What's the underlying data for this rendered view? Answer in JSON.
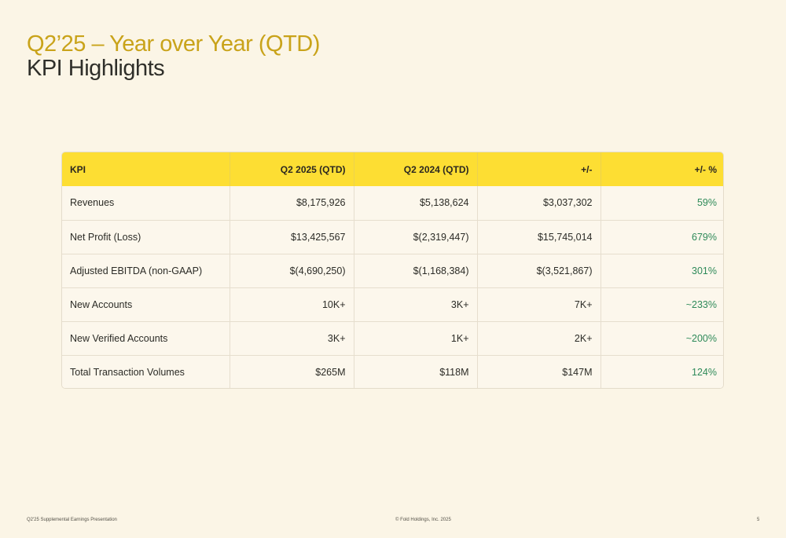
{
  "header": {
    "title": "Q2’25 – Year over Year (QTD)",
    "subtitle": "KPI Highlights"
  },
  "table": {
    "columns": [
      "KPI",
      "Q2 2025 (QTD)",
      "Q2 2024 (QTD)",
      "+/-",
      "+/- %"
    ],
    "rows": [
      [
        "Revenues",
        "$8,175,926",
        "$5,138,624",
        "$3,037,302",
        "59%"
      ],
      [
        "Net Profit (Loss)",
        "$13,425,567",
        "$(2,319,447)",
        "$15,745,014",
        "679%"
      ],
      [
        "Adjusted EBITDA (non-GAAP)",
        "$(4,690,250)",
        "$(1,168,384)",
        "$(3,521,867)",
        "301%"
      ],
      [
        "New Accounts",
        "10K+",
        "3K+",
        "7K+",
        "~233%"
      ],
      [
        "New Verified Accounts",
        "3K+",
        "1K+",
        "2K+",
        "~200%"
      ],
      [
        "Total Transaction Volumes",
        "$265M",
        "$118M",
        "$147M",
        "124%"
      ]
    ]
  },
  "footer": {
    "left": "Q2'25 Supplemental Earnings Presentation",
    "center": "© Fold Holdings, Inc. 2025",
    "page_number": "5"
  },
  "colors": {
    "background": "#fbf5e6",
    "title_gold": "#c9a31a",
    "header_yellow": "#fdde33",
    "positive_green": "#2e8a59"
  }
}
